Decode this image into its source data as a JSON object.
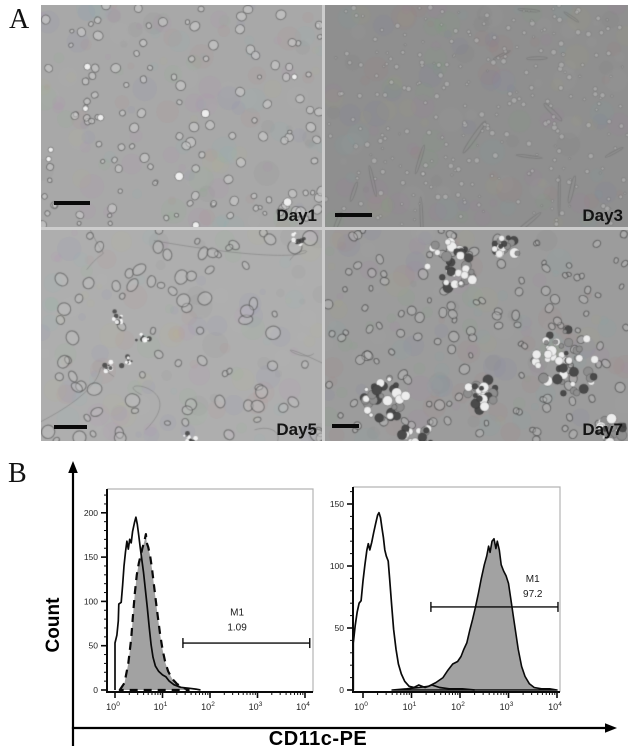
{
  "figure": {
    "type": "scientific-figure",
    "panels": [
      "A",
      "B"
    ]
  },
  "panel_a": {
    "label": "A",
    "description_visible_text_only": false,
    "quadrants": [
      {
        "label": "Day1",
        "scale_bar": true,
        "texture": {
          "bg": "#a8a8a8",
          "style": "round",
          "cells": 130,
          "bright": 10
        }
      },
      {
        "label": "Day3",
        "scale_bar": true,
        "texture": {
          "bg": "#8f8f8f",
          "style": "tiny",
          "cells": 270,
          "spindles": 16
        }
      },
      {
        "label": "Day5",
        "scale_bar": true,
        "texture": {
          "bg": "#aeaeae",
          "style": "irregular",
          "cells": 85,
          "bursts": 6,
          "fibers": 6
        }
      },
      {
        "label": "Day7",
        "scale_bar": true,
        "texture": {
          "bg": "#9c9c9c",
          "style": "clustered",
          "cells": 140,
          "clusters": [
            [
              0.42,
              0.16,
              26
            ],
            [
              0.6,
              0.08,
              13
            ],
            [
              0.8,
              0.62,
              34
            ],
            [
              0.2,
              0.8,
              22
            ],
            [
              0.52,
              0.78,
              16
            ],
            [
              0.3,
              1.0,
              18
            ],
            [
              0.95,
              0.95,
              13
            ]
          ]
        }
      }
    ]
  },
  "panel_b": {
    "label": "B",
    "ylabel": "Count",
    "xlabel": "CD11c-PE"
  },
  "chart_data": [
    {
      "type": "area",
      "subtype": "flow-cytometry-histogram",
      "position": "left",
      "xscale": "log",
      "xlabel": "CD11c-PE",
      "ylabel": "Count",
      "xlim_log10": [
        -0.17,
        4.13
      ],
      "ylim": [
        0,
        227
      ],
      "yticks": [
        0,
        50,
        100,
        150,
        200
      ],
      "y_minor_step": 10,
      "xticks": [
        "10^0",
        "10^1",
        "10^2",
        "10^3",
        "10^4"
      ],
      "grid": false,
      "frame_color": "#b3b3b3",
      "marker": {
        "name": "M1",
        "percent": "1.09",
        "from_log10": 1.43,
        "to_log10": 4.1,
        "y_count": 53,
        "label_log10_x": 2.57,
        "label_y_counts": [
          84,
          67
        ]
      },
      "series": [
        {
          "name": "stained-filled",
          "style": "filled-dashed",
          "fill": "#a2a2a2",
          "stroke": "#0a0a0a",
          "points": [
            [
              0.1,
              0
            ],
            [
              0.2,
              8
            ],
            [
              0.28,
              30
            ],
            [
              0.34,
              58
            ],
            [
              0.38,
              86
            ],
            [
              0.42,
              110
            ],
            [
              0.46,
              130
            ],
            [
              0.5,
              143
            ],
            [
              0.54,
              152
            ],
            [
              0.58,
              161
            ],
            [
              0.62,
              168
            ],
            [
              0.65,
              176
            ],
            [
              0.67,
              166
            ],
            [
              0.7,
              161
            ],
            [
              0.74,
              151
            ],
            [
              0.78,
              136
            ],
            [
              0.82,
              119
            ],
            [
              0.86,
              101
            ],
            [
              0.9,
              83
            ],
            [
              0.95,
              63
            ],
            [
              1.0,
              46
            ],
            [
              1.06,
              31
            ],
            [
              1.12,
              21
            ],
            [
              1.2,
              13
            ],
            [
              1.3,
              7
            ],
            [
              1.42,
              3
            ],
            [
              1.55,
              0
            ]
          ]
        },
        {
          "name": "control-open",
          "style": "open-solid",
          "stroke": "#0a0a0a",
          "points": [
            [
              0.0,
              0
            ],
            [
              0.0,
              53
            ],
            [
              0.04,
              62
            ],
            [
              0.07,
              78
            ],
            [
              0.08,
              97
            ],
            [
              0.13,
              99
            ],
            [
              0.16,
              118
            ],
            [
              0.19,
              140
            ],
            [
              0.22,
              156
            ],
            [
              0.25,
              168
            ],
            [
              0.28,
              159
            ],
            [
              0.31,
              170
            ],
            [
              0.34,
              166
            ],
            [
              0.37,
              179
            ],
            [
              0.41,
              189
            ],
            [
              0.44,
              195
            ],
            [
              0.47,
              187
            ],
            [
              0.5,
              174
            ],
            [
              0.53,
              161
            ],
            [
              0.56,
              149
            ],
            [
              0.6,
              133
            ],
            [
              0.64,
              113
            ],
            [
              0.68,
              93
            ],
            [
              0.72,
              71
            ],
            [
              0.76,
              51
            ],
            [
              0.8,
              37
            ],
            [
              0.85,
              27
            ],
            [
              0.92,
              21
            ],
            [
              1.0,
              17
            ],
            [
              1.07,
              15
            ],
            [
              1.14,
              10
            ],
            [
              1.24,
              6
            ],
            [
              1.38,
              3
            ],
            [
              1.55,
              2
            ],
            [
              1.7,
              1
            ],
            [
              1.8,
              0
            ]
          ]
        }
      ]
    },
    {
      "type": "area",
      "subtype": "flow-cytometry-histogram",
      "position": "right",
      "xscale": "log",
      "xlabel": "CD11c-PE",
      "ylabel": "Count",
      "xlim_log10": [
        -0.2,
        4.06
      ],
      "ylim": [
        0,
        164
      ],
      "yticks": [
        0,
        50,
        100,
        150
      ],
      "y_minor_step": 10,
      "xticks": [
        "10^0",
        "10^1",
        "10^2",
        "10^3",
        "10^4"
      ],
      "grid": false,
      "frame_color": "#b3b3b3",
      "marker": {
        "name": "M1",
        "percent": "97.2",
        "from_log10": 1.4,
        "to_log10": 4.02,
        "y_count": 67,
        "label_log10_x": 3.5,
        "label_y_counts": [
          87,
          75
        ]
      },
      "series": [
        {
          "name": "stained-filled",
          "style": "filled-solid",
          "fill": "#a2a2a2",
          "stroke": "#0a0a0a",
          "points": [
            [
              0.6,
              0
            ],
            [
              0.9,
              1
            ],
            [
              1.15,
              2
            ],
            [
              1.35,
              3
            ],
            [
              1.5,
              6
            ],
            [
              1.65,
              10
            ],
            [
              1.75,
              16
            ],
            [
              1.85,
              21
            ],
            [
              1.95,
              23
            ],
            [
              2.02,
              27
            ],
            [
              2.08,
              33
            ],
            [
              2.14,
              38
            ],
            [
              2.2,
              48
            ],
            [
              2.26,
              57
            ],
            [
              2.32,
              67
            ],
            [
              2.38,
              78
            ],
            [
              2.44,
              90
            ],
            [
              2.5,
              101
            ],
            [
              2.55,
              108
            ],
            [
              2.59,
              116
            ],
            [
              2.62,
              111
            ],
            [
              2.66,
              120
            ],
            [
              2.7,
              122
            ],
            [
              2.74,
              114
            ],
            [
              2.77,
              120
            ],
            [
              2.81,
              113
            ],
            [
              2.85,
              101
            ],
            [
              2.9,
              96
            ],
            [
              2.95,
              92
            ],
            [
              3.0,
              86
            ],
            [
              3.05,
              73
            ],
            [
              3.1,
              59
            ],
            [
              3.15,
              46
            ],
            [
              3.2,
              33
            ],
            [
              3.27,
              19
            ],
            [
              3.34,
              11
            ],
            [
              3.43,
              5
            ],
            [
              3.53,
              2
            ],
            [
              3.68,
              1
            ],
            [
              3.85,
              1
            ],
            [
              4.0,
              0
            ]
          ]
        },
        {
          "name": "control-open",
          "style": "open-solid",
          "stroke": "#0a0a0a",
          "points": [
            [
              -0.2,
              0
            ],
            [
              -0.2,
              38
            ],
            [
              -0.16,
              52
            ],
            [
              -0.12,
              63
            ],
            [
              -0.08,
              70
            ],
            [
              -0.04,
              72
            ],
            [
              0.0,
              88
            ],
            [
              0.04,
              101
            ],
            [
              0.08,
              113
            ],
            [
              0.11,
              118
            ],
            [
              0.14,
              113
            ],
            [
              0.18,
              119
            ],
            [
              0.22,
              127
            ],
            [
              0.26,
              134
            ],
            [
              0.3,
              141
            ],
            [
              0.33,
              143
            ],
            [
              0.36,
              139
            ],
            [
              0.39,
              131
            ],
            [
              0.42,
              123
            ],
            [
              0.45,
              113
            ],
            [
              0.48,
              108
            ],
            [
              0.52,
              104
            ],
            [
              0.55,
              89
            ],
            [
              0.59,
              69
            ],
            [
              0.63,
              49
            ],
            [
              0.68,
              33
            ],
            [
              0.73,
              21
            ],
            [
              0.79,
              13
            ],
            [
              0.86,
              7
            ],
            [
              0.95,
              3
            ],
            [
              1.05,
              2
            ],
            [
              1.15,
              4
            ],
            [
              1.28,
              2
            ],
            [
              1.42,
              4
            ],
            [
              1.58,
              2
            ],
            [
              1.78,
              1
            ],
            [
              2.05,
              1
            ],
            [
              2.3,
              0
            ]
          ]
        }
      ]
    }
  ]
}
